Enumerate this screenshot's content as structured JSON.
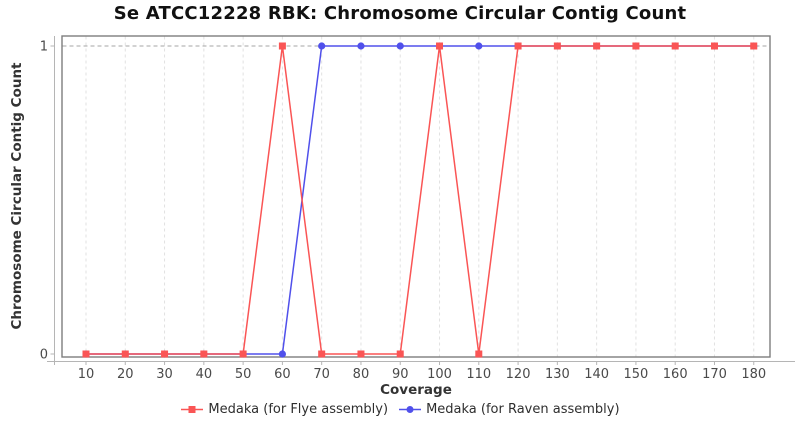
{
  "chart_data": {
    "type": "line",
    "title": "Se ATCC12228 RBK: Chromosome Circular Contig Count",
    "xlabel": "Coverage",
    "ylabel": "Chromosome Circular Contig Count",
    "x": [
      10,
      20,
      30,
      40,
      50,
      60,
      70,
      80,
      90,
      100,
      110,
      120,
      130,
      140,
      150,
      160,
      170,
      180
    ],
    "x_tick_labels": [
      "10",
      "20",
      "30",
      "40",
      "50",
      "60",
      "70",
      "80",
      "90",
      "100",
      "110",
      "120",
      "130",
      "140",
      "150",
      "160",
      "170",
      "180"
    ],
    "y_ticks": [
      "0",
      "1"
    ],
    "y_tick_values": [
      0,
      1
    ],
    "ylim": [
      0,
      1
    ],
    "grid": {
      "vertical": "dashed-light",
      "horizontal_at_1": "dashed-gray",
      "legend_position": "bottom-center"
    },
    "series": [
      {
        "name": "Medaka (for Flye assembly)",
        "color": "#fa5555",
        "marker": "square",
        "values": [
          0,
          0,
          0,
          0,
          0,
          1,
          0,
          0,
          0,
          1,
          0,
          1,
          1,
          1,
          1,
          1,
          1,
          1
        ]
      },
      {
        "name": "Medaka (for Raven assembly)",
        "color": "#5050eb",
        "marker": "circle",
        "values": [
          0,
          0,
          0,
          0,
          0,
          0,
          1,
          1,
          1,
          1,
          1,
          1,
          1,
          1,
          1,
          1,
          1,
          1
        ]
      }
    ]
  },
  "colors": {
    "panel_border": "#7d7d7d",
    "axis_line": "#b5b5b5",
    "grid_vertical": "#e1e1e1",
    "grid_horizontal": "#a6a6a6",
    "tick_label": "#4a4a4a"
  }
}
